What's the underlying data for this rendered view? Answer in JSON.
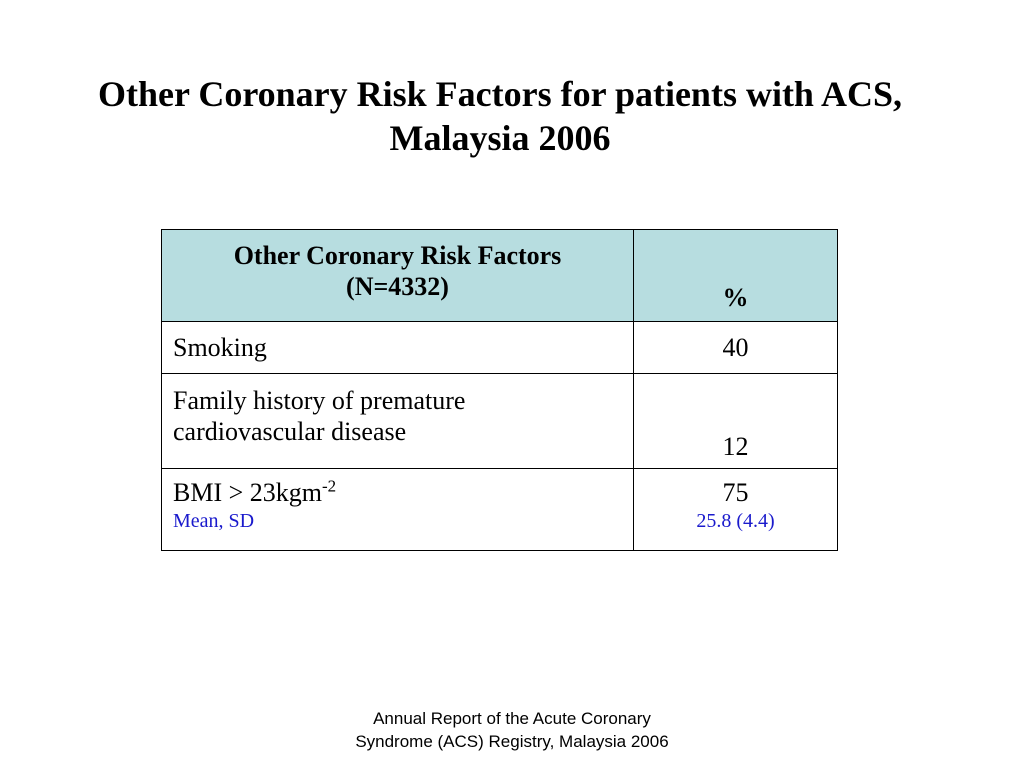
{
  "title": {
    "line1": "Other Coronary Risk Factors for patients with ACS,",
    "line2": "Malaysia 2006"
  },
  "table": {
    "header": {
      "factor_line1": "Other Coronary Risk Factors",
      "factor_line2": "(N=4332)",
      "percent": "%"
    },
    "rows": [
      {
        "factor": "Smoking",
        "value": "40"
      },
      {
        "factor_line1": "Family history of premature",
        "factor_line2": "cardiovascular disease",
        "value": "12"
      },
      {
        "factor_main": "BMI > 23kgm",
        "factor_sup": "-2",
        "factor_note": "Mean, SD",
        "value": "75",
        "value_note": "25.8 (4.4)"
      }
    ],
    "colors": {
      "header_bg": "#b7dde0",
      "note_text": "#1a1acc"
    }
  },
  "footnote": {
    "line1": "Annual Report of the Acute Coronary",
    "line2": "Syndrome (ACS) Registry, Malaysia 2006"
  }
}
